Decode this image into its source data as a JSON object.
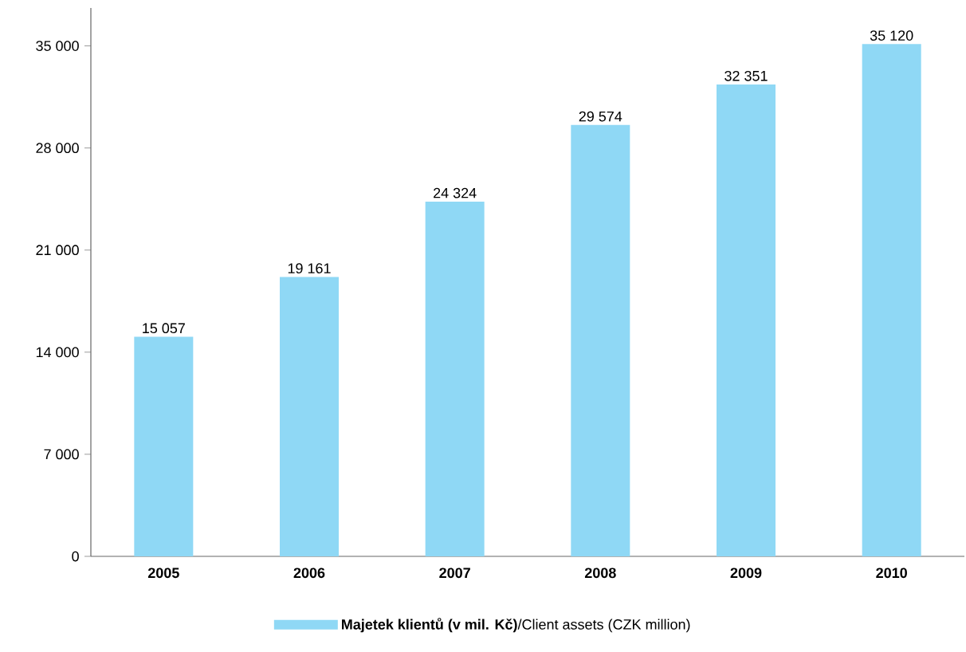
{
  "chart_data": {
    "type": "bar",
    "categories": [
      "2005",
      "2006",
      "2007",
      "2008",
      "2009",
      "2010"
    ],
    "series": [
      {
        "name": "**Majetek klientů (v mil. Kč)**/Client assets (CZK million)",
        "color": "#8fd8f5",
        "values": [
          15057,
          19161,
          24324,
          29574,
          32351,
          35120
        ],
        "value_labels": [
          "15 057",
          "19 161",
          "24 324",
          "29 574",
          "32 351",
          "35 120"
        ]
      }
    ],
    "ylim": [
      0,
      37600
    ],
    "yticks": [
      {
        "value": 0,
        "label": "0"
      },
      {
        "value": 7000,
        "label": "7 000"
      },
      {
        "value": 14000,
        "label": "14 000"
      },
      {
        "value": 21000,
        "label": "21 000"
      },
      {
        "value": 28000,
        "label": "28 000"
      },
      {
        "value": 35000,
        "label": "35 000"
      }
    ],
    "grid": false,
    "legend": "bottom"
  }
}
